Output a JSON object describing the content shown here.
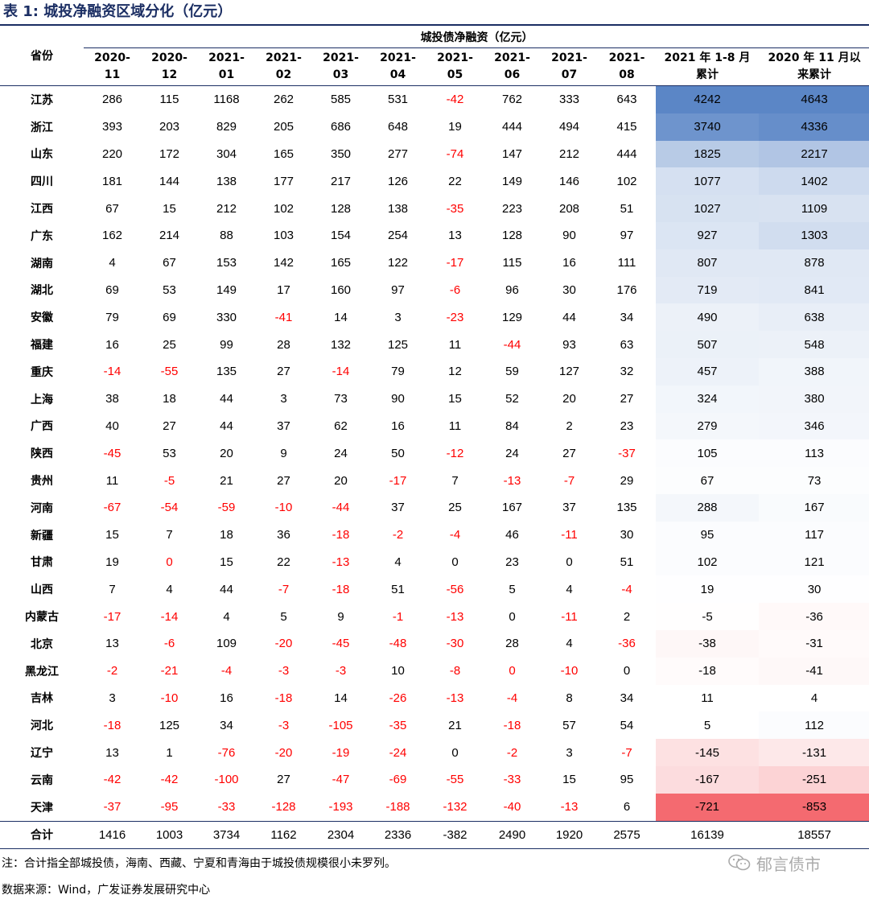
{
  "title": "表 1: 城投净融资区域分化（亿元）",
  "header": {
    "province_label": "省份",
    "group_label": "城投债净融资（亿元）",
    "columns": [
      "2020-\n11",
      "2020-\n12",
      "2021-\n01",
      "2021-\n02",
      "2021-\n03",
      "2021-\n04",
      "2021-\n05",
      "2021-\n06",
      "2021-\n07",
      "2021-\n08",
      "2021 年 1-8 月\n累计",
      "2020 年 11 月以\n来累计"
    ]
  },
  "rows": [
    {
      "province": "江苏",
      "values": [
        286,
        115,
        1168,
        262,
        585,
        531,
        -42,
        762,
        333,
        643,
        4242,
        4643
      ]
    },
    {
      "province": "浙江",
      "values": [
        393,
        203,
        829,
        205,
        686,
        648,
        19,
        444,
        494,
        415,
        3740,
        4336
      ]
    },
    {
      "province": "山东",
      "values": [
        220,
        172,
        304,
        165,
        350,
        277,
        -74,
        147,
        212,
        444,
        1825,
        2217
      ]
    },
    {
      "province": "四川",
      "values": [
        181,
        144,
        138,
        177,
        217,
        126,
        22,
        149,
        146,
        102,
        1077,
        1402
      ]
    },
    {
      "province": "江西",
      "values": [
        67,
        15,
        212,
        102,
        128,
        138,
        -35,
        223,
        208,
        51,
        1027,
        1109
      ]
    },
    {
      "province": "广东",
      "values": [
        162,
        214,
        88,
        103,
        154,
        254,
        13,
        128,
        90,
        97,
        927,
        1303
      ]
    },
    {
      "province": "湖南",
      "values": [
        4,
        67,
        153,
        142,
        165,
        122,
        -17,
        115,
        16,
        111,
        807,
        878
      ]
    },
    {
      "province": "湖北",
      "values": [
        69,
        53,
        149,
        17,
        160,
        97,
        -6,
        96,
        30,
        176,
        719,
        841
      ]
    },
    {
      "province": "安徽",
      "values": [
        79,
        69,
        330,
        -41,
        14,
        3,
        -23,
        129,
        44,
        34,
        490,
        638
      ]
    },
    {
      "province": "福建",
      "values": [
        16,
        25,
        99,
        28,
        132,
        125,
        11,
        -44,
        93,
        63,
        507,
        548
      ]
    },
    {
      "province": "重庆",
      "values": [
        -14,
        -55,
        135,
        27,
        -14,
        79,
        12,
        59,
        127,
        32,
        457,
        388
      ]
    },
    {
      "province": "上海",
      "values": [
        38,
        18,
        44,
        3,
        73,
        90,
        15,
        52,
        20,
        27,
        324,
        380
      ]
    },
    {
      "province": "广西",
      "values": [
        40,
        27,
        44,
        37,
        62,
        16,
        11,
        84,
        2,
        23,
        279,
        346
      ]
    },
    {
      "province": "陕西",
      "values": [
        -45,
        53,
        20,
        9,
        24,
        50,
        -12,
        24,
        27,
        -37,
        105,
        113
      ]
    },
    {
      "province": "贵州",
      "values": [
        11,
        -5,
        21,
        27,
        20,
        -17,
        7,
        -13,
        -7,
        29,
        67,
        73
      ]
    },
    {
      "province": "河南",
      "values": [
        -67,
        -54,
        -59,
        -10,
        -44,
        37,
        25,
        167,
        37,
        135,
        288,
        167
      ]
    },
    {
      "province": "新疆",
      "values": [
        15,
        7,
        18,
        36,
        -18,
        -2,
        -4,
        46,
        -11,
        30,
        95,
        117
      ]
    },
    {
      "province": "甘肃",
      "values": [
        19,
        0,
        15,
        22,
        -13,
        4,
        0,
        23,
        0,
        51,
        102,
        121
      ]
    },
    {
      "province": "山西",
      "values": [
        7,
        4,
        44,
        -7,
        -18,
        51,
        -56,
        5,
        4,
        -4,
        19,
        30
      ]
    },
    {
      "province": "内蒙古",
      "values": [
        -17,
        -14,
        4,
        5,
        9,
        -1,
        -13,
        0,
        -11,
        2,
        -5,
        -36
      ]
    },
    {
      "province": "北京",
      "values": [
        13,
        -6,
        109,
        -20,
        -45,
        -48,
        -30,
        28,
        4,
        -36,
        -38,
        -31
      ]
    },
    {
      "province": "黑龙江",
      "values": [
        -2,
        -21,
        -4,
        -3,
        -3,
        10,
        -8,
        0,
        -10,
        0,
        -18,
        -41
      ]
    },
    {
      "province": "吉林",
      "values": [
        3,
        -10,
        16,
        -18,
        14,
        -26,
        -13,
        -4,
        8,
        34,
        11,
        4
      ]
    },
    {
      "province": "河北",
      "values": [
        -18,
        125,
        34,
        -3,
        -105,
        -35,
        21,
        -18,
        57,
        54,
        5,
        112
      ]
    },
    {
      "province": "辽宁",
      "values": [
        13,
        1,
        -76,
        -20,
        -19,
        -24,
        0,
        -2,
        3,
        -7,
        -145,
        -131
      ]
    },
    {
      "province": "云南",
      "values": [
        -42,
        -42,
        -100,
        27,
        -47,
        -69,
        -55,
        -33,
        15,
        95,
        -167,
        -251
      ]
    },
    {
      "province": "天津",
      "values": [
        -37,
        -95,
        -33,
        -128,
        -193,
        -188,
        -132,
        -40,
        -13,
        6,
        -721,
        -853
      ]
    }
  ],
  "red_zero_cells": [
    [
      17,
      1
    ],
    [
      21,
      7
    ]
  ],
  "total": {
    "label": "合计",
    "values": [
      1416,
      1003,
      3734,
      1162,
      2304,
      2336,
      -382,
      2490,
      1920,
      2575,
      16139,
      18557
    ]
  },
  "colors": {
    "title": "#1b2e63",
    "negative": "#ff0000",
    "heat_max": "#5b86c6",
    "heat_mid": "#ffffff",
    "heat_min": "#f46a70"
  },
  "note": "注：合计指全部城投债，海南、西藏、宁夏和青海由于城投债规模很小未罗列。",
  "source": "数据来源：Wind，广发证券发展研究中心",
  "watermark": {
    "text": "郁言债市",
    "icon": "wechat-icon"
  }
}
